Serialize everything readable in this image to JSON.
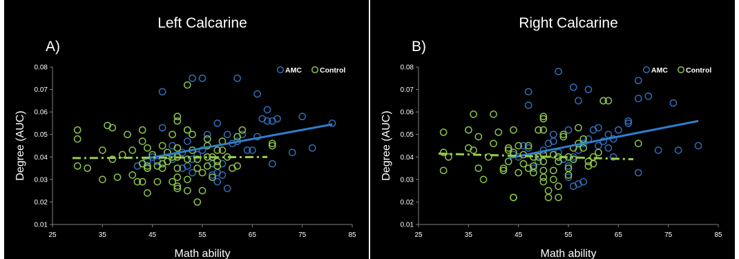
{
  "figure": {
    "colors": {
      "amc": "#2f6eb8",
      "control": "#8bc34a",
      "amc_trend": "#2f7fd0",
      "control_trend": "#9ccc45",
      "background": "#000000",
      "text": "#ffffff",
      "axis": "#7f7f7f"
    }
  },
  "chart_data": [
    {
      "type": "scatter",
      "panel_label": "A)",
      "title": "Left Calcarine",
      "xlabel": "Math ability",
      "ylabel": "Degree (AUC)",
      "xlim": [
        25,
        85
      ],
      "ylim": [
        0.01,
        0.08
      ],
      "x_ticks": [
        "25",
        "35",
        "45",
        "55",
        "65",
        "75",
        "85"
      ],
      "y_ticks": [
        "0.01",
        "0.02",
        "0.03",
        "0.04",
        "0.05",
        "0.06",
        "0.07",
        "0.08"
      ],
      "grid": false,
      "legend_position": "top-right",
      "series": [
        {
          "name": "AMC",
          "points": [
            [
              47,
              0.069
            ],
            [
              53,
              0.075
            ],
            [
              55,
              0.075
            ],
            [
              62,
              0.075
            ],
            [
              66,
              0.068
            ],
            [
              68,
              0.061
            ],
            [
              58,
              0.055
            ],
            [
              56,
              0.05
            ],
            [
              60,
              0.05
            ],
            [
              52,
              0.052
            ],
            [
              50,
              0.058
            ],
            [
              47,
              0.053
            ],
            [
              44,
              0.038
            ],
            [
              44,
              0.035
            ],
            [
              42,
              0.036
            ],
            [
              45,
              0.04
            ],
            [
              46,
              0.038
            ],
            [
              48,
              0.042
            ],
            [
              49,
              0.045
            ],
            [
              50,
              0.044
            ],
            [
              51,
              0.042
            ],
            [
              52,
              0.036
            ],
            [
              53,
              0.039
            ],
            [
              54,
              0.041
            ],
            [
              55,
              0.043
            ],
            [
              56,
              0.04
            ],
            [
              57,
              0.037
            ],
            [
              58,
              0.033
            ],
            [
              57,
              0.032
            ],
            [
              58,
              0.029
            ],
            [
              59,
              0.032
            ],
            [
              60,
              0.026
            ],
            [
              61,
              0.046
            ],
            [
              62,
              0.047
            ],
            [
              63,
              0.05
            ],
            [
              64,
              0.043
            ],
            [
              65,
              0.043
            ],
            [
              66,
              0.049
            ],
            [
              67,
              0.057
            ],
            [
              68,
              0.056
            ],
            [
              69,
              0.056
            ],
            [
              70,
              0.057
            ],
            [
              73,
              0.042
            ],
            [
              75,
              0.058
            ],
            [
              77,
              0.044
            ],
            [
              81,
              0.055
            ],
            [
              69,
              0.037
            ],
            [
              52,
              0.047
            ],
            [
              53,
              0.033
            ],
            [
              51,
              0.035
            ],
            [
              49,
              0.039
            ],
            [
              56,
              0.048
            ],
            [
              59,
              0.037
            ]
          ]
        },
        {
          "name": "Control",
          "points": [
            [
              30,
              0.052
            ],
            [
              30,
              0.048
            ],
            [
              30,
              0.036
            ],
            [
              32,
              0.035
            ],
            [
              35,
              0.03
            ],
            [
              35,
              0.043
            ],
            [
              36,
              0.054
            ],
            [
              37,
              0.053
            ],
            [
              37,
              0.039
            ],
            [
              38,
              0.031
            ],
            [
              39,
              0.041
            ],
            [
              40,
              0.05
            ],
            [
              41,
              0.043
            ],
            [
              41,
              0.032
            ],
            [
              43,
              0.052
            ],
            [
              43,
              0.047
            ],
            [
              42,
              0.029
            ],
            [
              43,
              0.037
            ],
            [
              43,
              0.029
            ],
            [
              44,
              0.035
            ],
            [
              44,
              0.044
            ],
            [
              45,
              0.041
            ],
            [
              44,
              0.024
            ],
            [
              44,
              0.036
            ],
            [
              46,
              0.029
            ],
            [
              47,
              0.035
            ],
            [
              47,
              0.037
            ],
            [
              47,
              0.045
            ],
            [
              48,
              0.042
            ],
            [
              49,
              0.04
            ],
            [
              49,
              0.029
            ],
            [
              49,
              0.05
            ],
            [
              50,
              0.031
            ],
            [
              50,
              0.026
            ],
            [
              50,
              0.027
            ],
            [
              50,
              0.035
            ],
            [
              50,
              0.04
            ],
            [
              50,
              0.044
            ],
            [
              50,
              0.058
            ],
            [
              50,
              0.056
            ],
            [
              52,
              0.072
            ],
            [
              52,
              0.025
            ],
            [
              52,
              0.03
            ],
            [
              52,
              0.039
            ],
            [
              52,
              0.052
            ],
            [
              53,
              0.05
            ],
            [
              53,
              0.043
            ],
            [
              54,
              0.035
            ],
            [
              54,
              0.039
            ],
            [
              54,
              0.02
            ],
            [
              55,
              0.025
            ],
            [
              55,
              0.033
            ],
            [
              56,
              0.036
            ],
            [
              56,
              0.04
            ],
            [
              56,
              0.045
            ],
            [
              56,
              0.048
            ],
            [
              57,
              0.031
            ],
            [
              57,
              0.04
            ],
            [
              58,
              0.036
            ],
            [
              58,
              0.043
            ],
            [
              58,
              0.038
            ],
            [
              59,
              0.047
            ],
            [
              59,
              0.043
            ],
            [
              60,
              0.04
            ],
            [
              61,
              0.035
            ],
            [
              62,
              0.036
            ],
            [
              62,
              0.049
            ],
            [
              63,
              0.052
            ],
            [
              69,
              0.046
            ],
            [
              69,
              0.045
            ],
            [
              48,
              0.038
            ],
            [
              46,
              0.036
            ]
          ]
        }
      ],
      "trendlines": [
        {
          "series": "AMC",
          "style": "solid",
          "from": [
            43,
            0.039
          ],
          "to": [
            81,
            0.0545
          ]
        },
        {
          "series": "Control",
          "style": "dashed",
          "from": [
            29,
            0.0395
          ],
          "to": [
            68,
            0.04
          ]
        }
      ]
    },
    {
      "type": "scatter",
      "panel_label": "B)",
      "title": "Right Calcarine",
      "xlabel": "Math ability",
      "ylabel": "Degree (AUC)",
      "xlim": [
        25,
        85
      ],
      "ylim": [
        0.01,
        0.08
      ],
      "x_ticks": [
        "25",
        "35",
        "45",
        "55",
        "65",
        "75",
        "85"
      ],
      "y_ticks": [
        "0.01",
        "0.02",
        "0.03",
        "0.04",
        "0.05",
        "0.06",
        "0.07",
        "0.08"
      ],
      "grid": false,
      "legend_position": "top-right",
      "series": [
        {
          "name": "AMC",
          "points": [
            [
              53,
              0.078
            ],
            [
              47,
              0.069
            ],
            [
              47,
              0.063
            ],
            [
              56,
              0.071
            ],
            [
              59,
              0.07
            ],
            [
              57,
              0.065
            ],
            [
              62,
              0.065
            ],
            [
              69,
              0.074
            ],
            [
              71,
              0.067
            ],
            [
              69,
              0.066
            ],
            [
              76,
              0.064
            ],
            [
              67,
              0.056
            ],
            [
              67,
              0.055
            ],
            [
              65,
              0.052
            ],
            [
              64,
              0.048
            ],
            [
              63,
              0.05
            ],
            [
              61,
              0.053
            ],
            [
              60,
              0.052
            ],
            [
              59,
              0.048
            ],
            [
              58,
              0.046
            ],
            [
              57,
              0.043
            ],
            [
              56,
              0.04
            ],
            [
              55,
              0.036
            ],
            [
              54,
              0.039
            ],
            [
              53,
              0.042
            ],
            [
              52,
              0.047
            ],
            [
              51,
              0.046
            ],
            [
              50,
              0.043
            ],
            [
              49,
              0.038
            ],
            [
              48,
              0.035
            ],
            [
              47,
              0.044
            ],
            [
              46,
              0.045
            ],
            [
              45,
              0.04
            ],
            [
              44,
              0.041
            ],
            [
              56,
              0.027
            ],
            [
              57,
              0.028
            ],
            [
              55,
              0.031
            ],
            [
              58,
              0.029
            ],
            [
              61,
              0.045
            ],
            [
              62,
              0.047
            ],
            [
              63,
              0.044
            ],
            [
              64,
              0.04
            ],
            [
              73,
              0.043
            ],
            [
              77,
              0.043
            ],
            [
              81,
              0.045
            ],
            [
              69,
              0.033
            ],
            [
              52,
              0.05
            ],
            [
              55,
              0.052
            ]
          ]
        },
        {
          "name": "Control",
          "points": [
            [
              30,
              0.051
            ],
            [
              30,
              0.042
            ],
            [
              30,
              0.034
            ],
            [
              31,
              0.04
            ],
            [
              35,
              0.052
            ],
            [
              35,
              0.044
            ],
            [
              36,
              0.043
            ],
            [
              36,
              0.059
            ],
            [
              37,
              0.049
            ],
            [
              37,
              0.035
            ],
            [
              38,
              0.03
            ],
            [
              39,
              0.04
            ],
            [
              40,
              0.059
            ],
            [
              40,
              0.046
            ],
            [
              41,
              0.051
            ],
            [
              42,
              0.034
            ],
            [
              42,
              0.035
            ],
            [
              43,
              0.038
            ],
            [
              43,
              0.043
            ],
            [
              43,
              0.044
            ],
            [
              44,
              0.042
            ],
            [
              44,
              0.022
            ],
            [
              44,
              0.022
            ],
            [
              44,
              0.052
            ],
            [
              45,
              0.045
            ],
            [
              45,
              0.033
            ],
            [
              46,
              0.037
            ],
            [
              47,
              0.035
            ],
            [
              47,
              0.045
            ],
            [
              48,
              0.04
            ],
            [
              48,
              0.036
            ],
            [
              49,
              0.04
            ],
            [
              49,
              0.052
            ],
            [
              50,
              0.057
            ],
            [
              50,
              0.058
            ],
            [
              50,
              0.052
            ],
            [
              50,
              0.041
            ],
            [
              50,
              0.038
            ],
            [
              50,
              0.031
            ],
            [
              50,
              0.029
            ],
            [
              50,
              0.034
            ],
            [
              51,
              0.022
            ],
            [
              51,
              0.025
            ],
            [
              52,
              0.03
            ],
            [
              52,
              0.034
            ],
            [
              53,
              0.038
            ],
            [
              53,
              0.04
            ],
            [
              53,
              0.027
            ],
            [
              53,
              0.022
            ],
            [
              54,
              0.05
            ],
            [
              54,
              0.049
            ],
            [
              55,
              0.04
            ],
            [
              55,
              0.035
            ],
            [
              55,
              0.032
            ],
            [
              56,
              0.039
            ],
            [
              56,
              0.044
            ],
            [
              57,
              0.053
            ],
            [
              57,
              0.046
            ],
            [
              58,
              0.048
            ],
            [
              58,
              0.044
            ],
            [
              59,
              0.038
            ],
            [
              59,
              0.036
            ],
            [
              60,
              0.04
            ],
            [
              60,
              0.037
            ],
            [
              61,
              0.042
            ],
            [
              62,
              0.065
            ],
            [
              63,
              0.065
            ],
            [
              69,
              0.046
            ],
            [
              52,
              0.041
            ],
            [
              46,
              0.041
            ],
            [
              48,
              0.033
            ]
          ]
        }
      ],
      "trendlines": [
        {
          "series": "AMC",
          "style": "solid",
          "from": [
            43,
            0.0395
          ],
          "to": [
            81,
            0.056
          ]
        },
        {
          "series": "Control",
          "style": "dashed",
          "from": [
            29,
            0.0415
          ],
          "to": [
            68,
            0.039
          ]
        }
      ]
    }
  ]
}
